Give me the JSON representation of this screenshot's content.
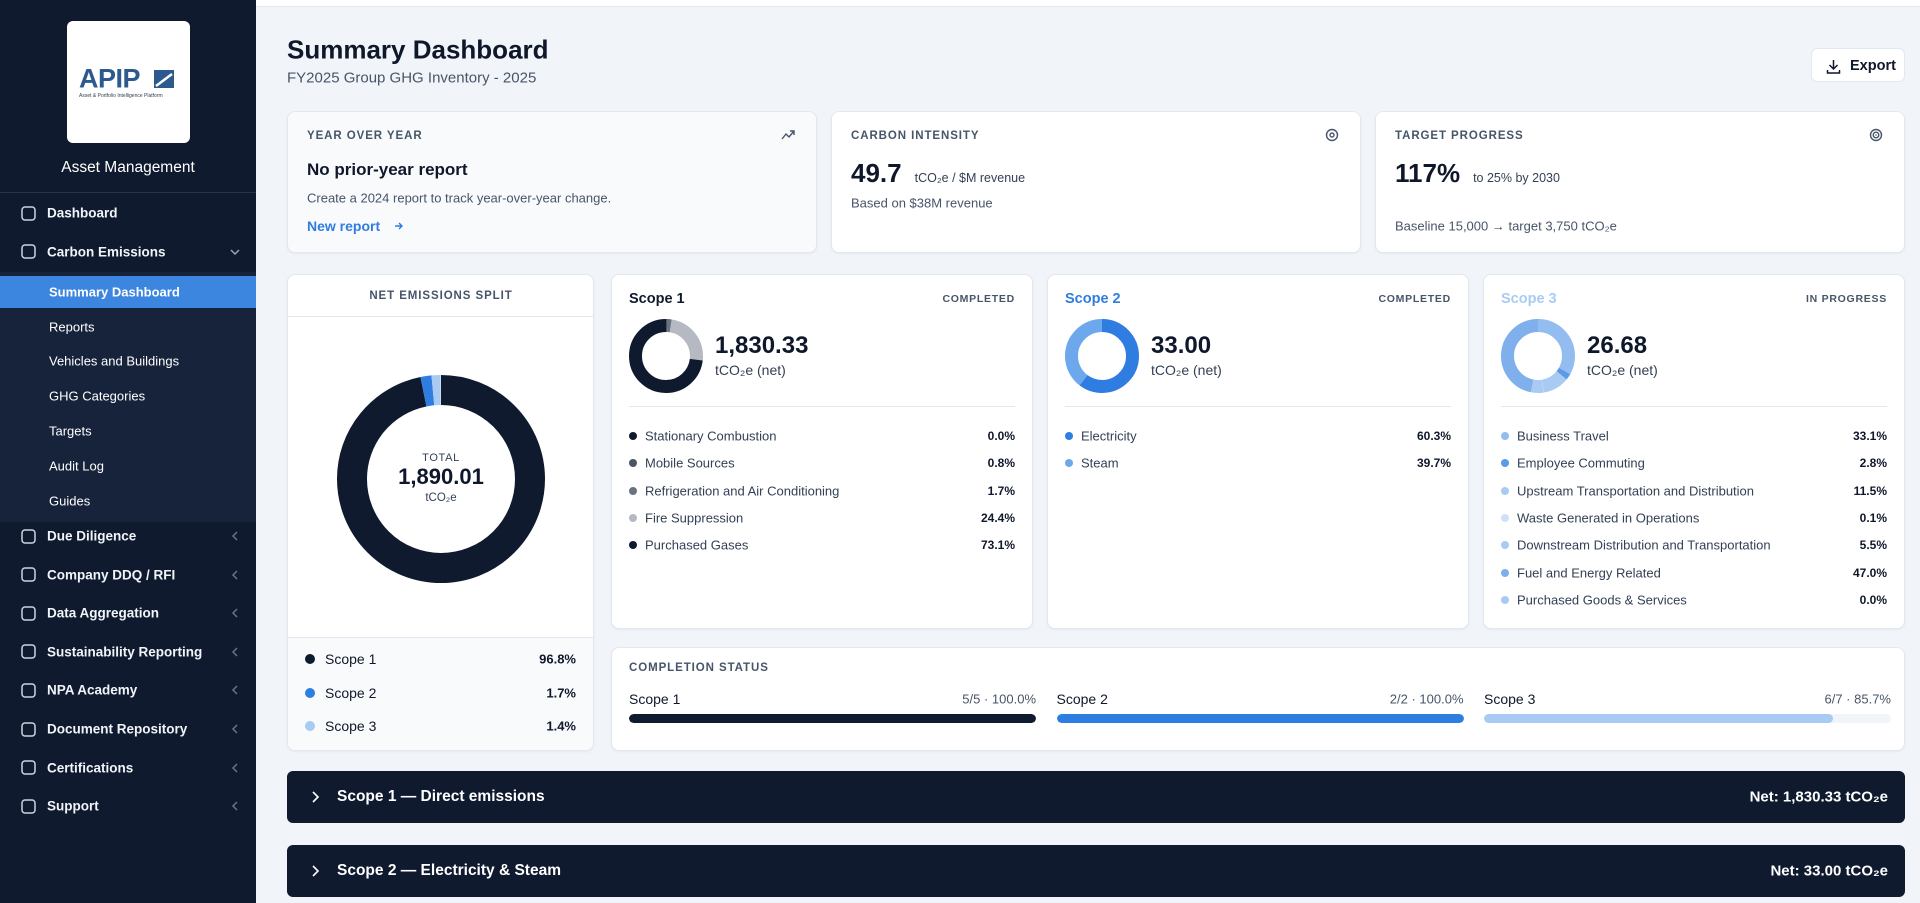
{
  "sidebar": {
    "logo": "APIP",
    "logo_tagline": "Asset & Portfolio Intelligence Platform",
    "org": "Asset Management",
    "nav": [
      {
        "label": "Dashboard"
      },
      {
        "label": "Carbon Emissions",
        "expanded": true,
        "children": [
          {
            "label": "Summary Dashboard",
            "active": true
          },
          {
            "label": "Reports"
          },
          {
            "label": "Vehicles and Buildings"
          },
          {
            "label": "GHG Categories"
          },
          {
            "label": "Targets"
          },
          {
            "label": "Audit Log"
          },
          {
            "label": "Guides"
          }
        ]
      },
      {
        "label": "Due Diligence",
        "expanded": false
      },
      {
        "label": "Company DDQ / RFI",
        "expanded": false
      },
      {
        "label": "Data Aggregation",
        "expanded": false
      },
      {
        "label": "Sustainability Reporting",
        "expanded": false
      },
      {
        "label": "NPA Academy",
        "expanded": false
      },
      {
        "label": "Document Repository",
        "expanded": false
      },
      {
        "label": "Certifications",
        "expanded": false
      },
      {
        "label": "Support",
        "expanded": false
      }
    ]
  },
  "header": {
    "title": "Summary Dashboard",
    "subtitle": "FY2025 Group GHG Inventory - 2025",
    "export": "Export"
  },
  "kpis": [
    {
      "label": "YEAR OVER YEAR",
      "heading": "No prior-year report",
      "text": "Create a 2024 report to track year-over-year change.",
      "link": "New report"
    },
    {
      "label": "CARBON INTENSITY",
      "value": "49.7",
      "unit": "tCO₂e / $M revenue",
      "note": "Based on $38M revenue"
    },
    {
      "label": "TARGET PROGRESS",
      "value": "117%",
      "unit": "to 25% by 2030",
      "note": "Baseline 15,000 → target 3,750 tCO₂e"
    }
  ],
  "net_split": {
    "title": "NET EMISSIONS SPLIT",
    "total_label": "TOTAL",
    "total": "1,890.01",
    "unit": "tCO₂e",
    "categories": [
      "Scope 1",
      "Scope 2",
      "Scope 3"
    ],
    "values": [
      96.8,
      1.7,
      1.4
    ],
    "value_labels": [
      "96.8%",
      "1.7%",
      "1.4%"
    ],
    "colors": [
      "#0f1a2e",
      "#2f7de1",
      "#a9cbf3"
    ]
  },
  "scopes": [
    {
      "name": "Scope 1",
      "status": "COMPLETED",
      "color": "#0f1a2e",
      "total": "1,830.33",
      "unit": "tCO₂e (net)",
      "categories": [
        "Stationary Combustion",
        "Mobile Sources",
        "Refrigeration and Air Conditioning",
        "Fire Suppression",
        "Purchased Gases"
      ],
      "values": [
        0.0,
        0.8,
        1.7,
        24.4,
        73.1
      ],
      "value_labels": [
        "0.0%",
        "0.8%",
        "1.7%",
        "24.4%",
        "73.1%"
      ],
      "colors": [
        "#0f1a2e",
        "#4b5563",
        "#6b7280",
        "#b4b9c2",
        "#0f1a2e"
      ]
    },
    {
      "name": "Scope 2",
      "status": "COMPLETED",
      "color": "#2f7de1",
      "total": "33.00",
      "unit": "tCO₂e (net)",
      "categories": [
        "Electricity",
        "Steam"
      ],
      "values": [
        60.3,
        39.7
      ],
      "value_labels": [
        "60.3%",
        "39.7%"
      ],
      "colors": [
        "#2f7de1",
        "#6ea8ec"
      ]
    },
    {
      "name": "Scope 3",
      "status": "IN PROGRESS",
      "color": "#a9cbf3",
      "total": "26.68",
      "unit": "tCO₂e (net)",
      "categories": [
        "Business Travel",
        "Employee Commuting",
        "Upstream Transportation and Distribution",
        "Waste Generated in Operations",
        "Downstream Distribution and Transportation",
        "Fuel and Energy Related",
        "Purchased Goods & Services"
      ],
      "values": [
        33.1,
        2.8,
        11.5,
        0.1,
        5.5,
        47.0,
        0.0
      ],
      "value_labels": [
        "33.1%",
        "2.8%",
        "11.5%",
        "0.1%",
        "5.5%",
        "47.0%",
        "0.0%"
      ],
      "colors": [
        "#93bdf0",
        "#5a9be8",
        "#a9cbf3",
        "#cfe1f8",
        "#a9cbf3",
        "#7fb0ec",
        "#a9cbf3"
      ]
    }
  ],
  "completion": {
    "title": "COMPLETION STATUS",
    "items": [
      {
        "name": "Scope 1",
        "label": "5/5 · 100.0%",
        "value": 100.0,
        "color": "#0f1a2e"
      },
      {
        "name": "Scope 2",
        "label": "2/2 · 100.0%",
        "value": 100.0,
        "color": "#2f7de1"
      },
      {
        "name": "Scope 3",
        "label": "6/7 · 85.7%",
        "value": 85.7,
        "color": "#a9cbf3"
      }
    ]
  },
  "sections": [
    {
      "title": "Scope 1 — Direct emissions",
      "net": "Net: 1,830.33 tCO₂e"
    },
    {
      "title": "Scope 2 — Electricity & Steam",
      "net": "Net: 33.00 tCO₂e"
    }
  ]
}
